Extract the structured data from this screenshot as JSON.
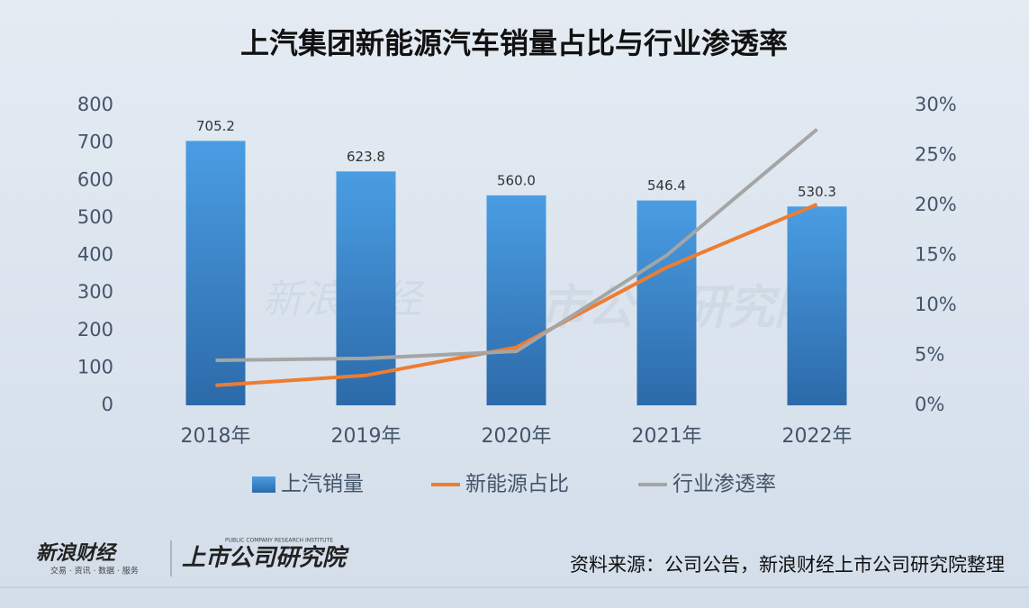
{
  "chart_data": {
    "type": "bar",
    "title": "上汽集团新能源汽车销量占比与行业渗透率",
    "categories": [
      "2018年",
      "2019年",
      "2020年",
      "2021年",
      "2022年"
    ],
    "series": [
      {
        "name": "上汽销量",
        "type": "bar",
        "color": "#3a87d4",
        "values": [
          705.2,
          623.8,
          560.0,
          546.4,
          530.3
        ],
        "value_labels": [
          "705.2",
          "623.8",
          "560.0",
          "546.4",
          "530.3"
        ]
      },
      {
        "name": "新能源占比",
        "type": "line",
        "axis": "y2",
        "color": "#ed7d31",
        "values": [
          2.0,
          3.0,
          5.8,
          13.8,
          20.1
        ]
      },
      {
        "name": "行业渗透率",
        "type": "line",
        "axis": "y2",
        "color": "#a5a5a5",
        "values": [
          4.5,
          4.7,
          5.4,
          15.0,
          27.6
        ]
      }
    ],
    "ylim": [
      0,
      800
    ],
    "yticks": [
      0,
      100,
      200,
      300,
      400,
      500,
      600,
      700,
      800
    ],
    "y2lim": [
      0,
      30
    ],
    "y2ticks": [
      {
        "value": 0,
        "label": "0%"
      },
      {
        "value": 5,
        "label": "5%"
      },
      {
        "value": 10,
        "label": "10%"
      },
      {
        "value": 15,
        "label": "15%"
      },
      {
        "value": 20,
        "label": "20%"
      },
      {
        "value": 25,
        "label": "25%"
      },
      {
        "value": 30,
        "label": "30%"
      }
    ],
    "grid": false,
    "legend": "bottom"
  },
  "watermark": [
    "新浪财经",
    "上市公司研究院"
  ],
  "footer": {
    "sina_logo": "新浪财经",
    "sina_tagline": "交易 · 资讯 · 数据 · 服务",
    "institute_logo": "上市公司研究院",
    "institute_tagline": "PUBLIC COMPANY RESEARCH INSTITUTE",
    "source": "资料来源：公司公告，新浪财经上市公司研究院整理"
  }
}
